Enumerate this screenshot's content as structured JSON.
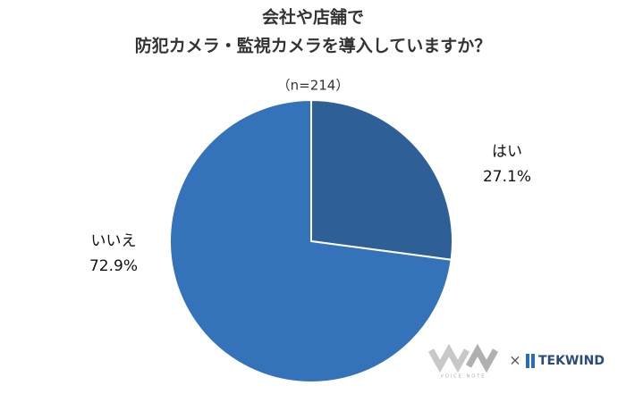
{
  "chart_data": {
    "type": "pie",
    "title": [
      "会社や店舗で",
      "防犯カメラ・監視カメラを導入していますか？"
    ],
    "subtitle": "（n=214）",
    "categories": [
      "はい",
      "いいえ"
    ],
    "values": [
      27.1,
      72.9
    ],
    "value_labels": [
      "27.1%",
      "72.9%"
    ],
    "colors": [
      "#2e5f96",
      "#3473b9"
    ]
  },
  "logo": {
    "left": "VOICE NOTE",
    "separator": "×",
    "right": "TEKWIND"
  }
}
